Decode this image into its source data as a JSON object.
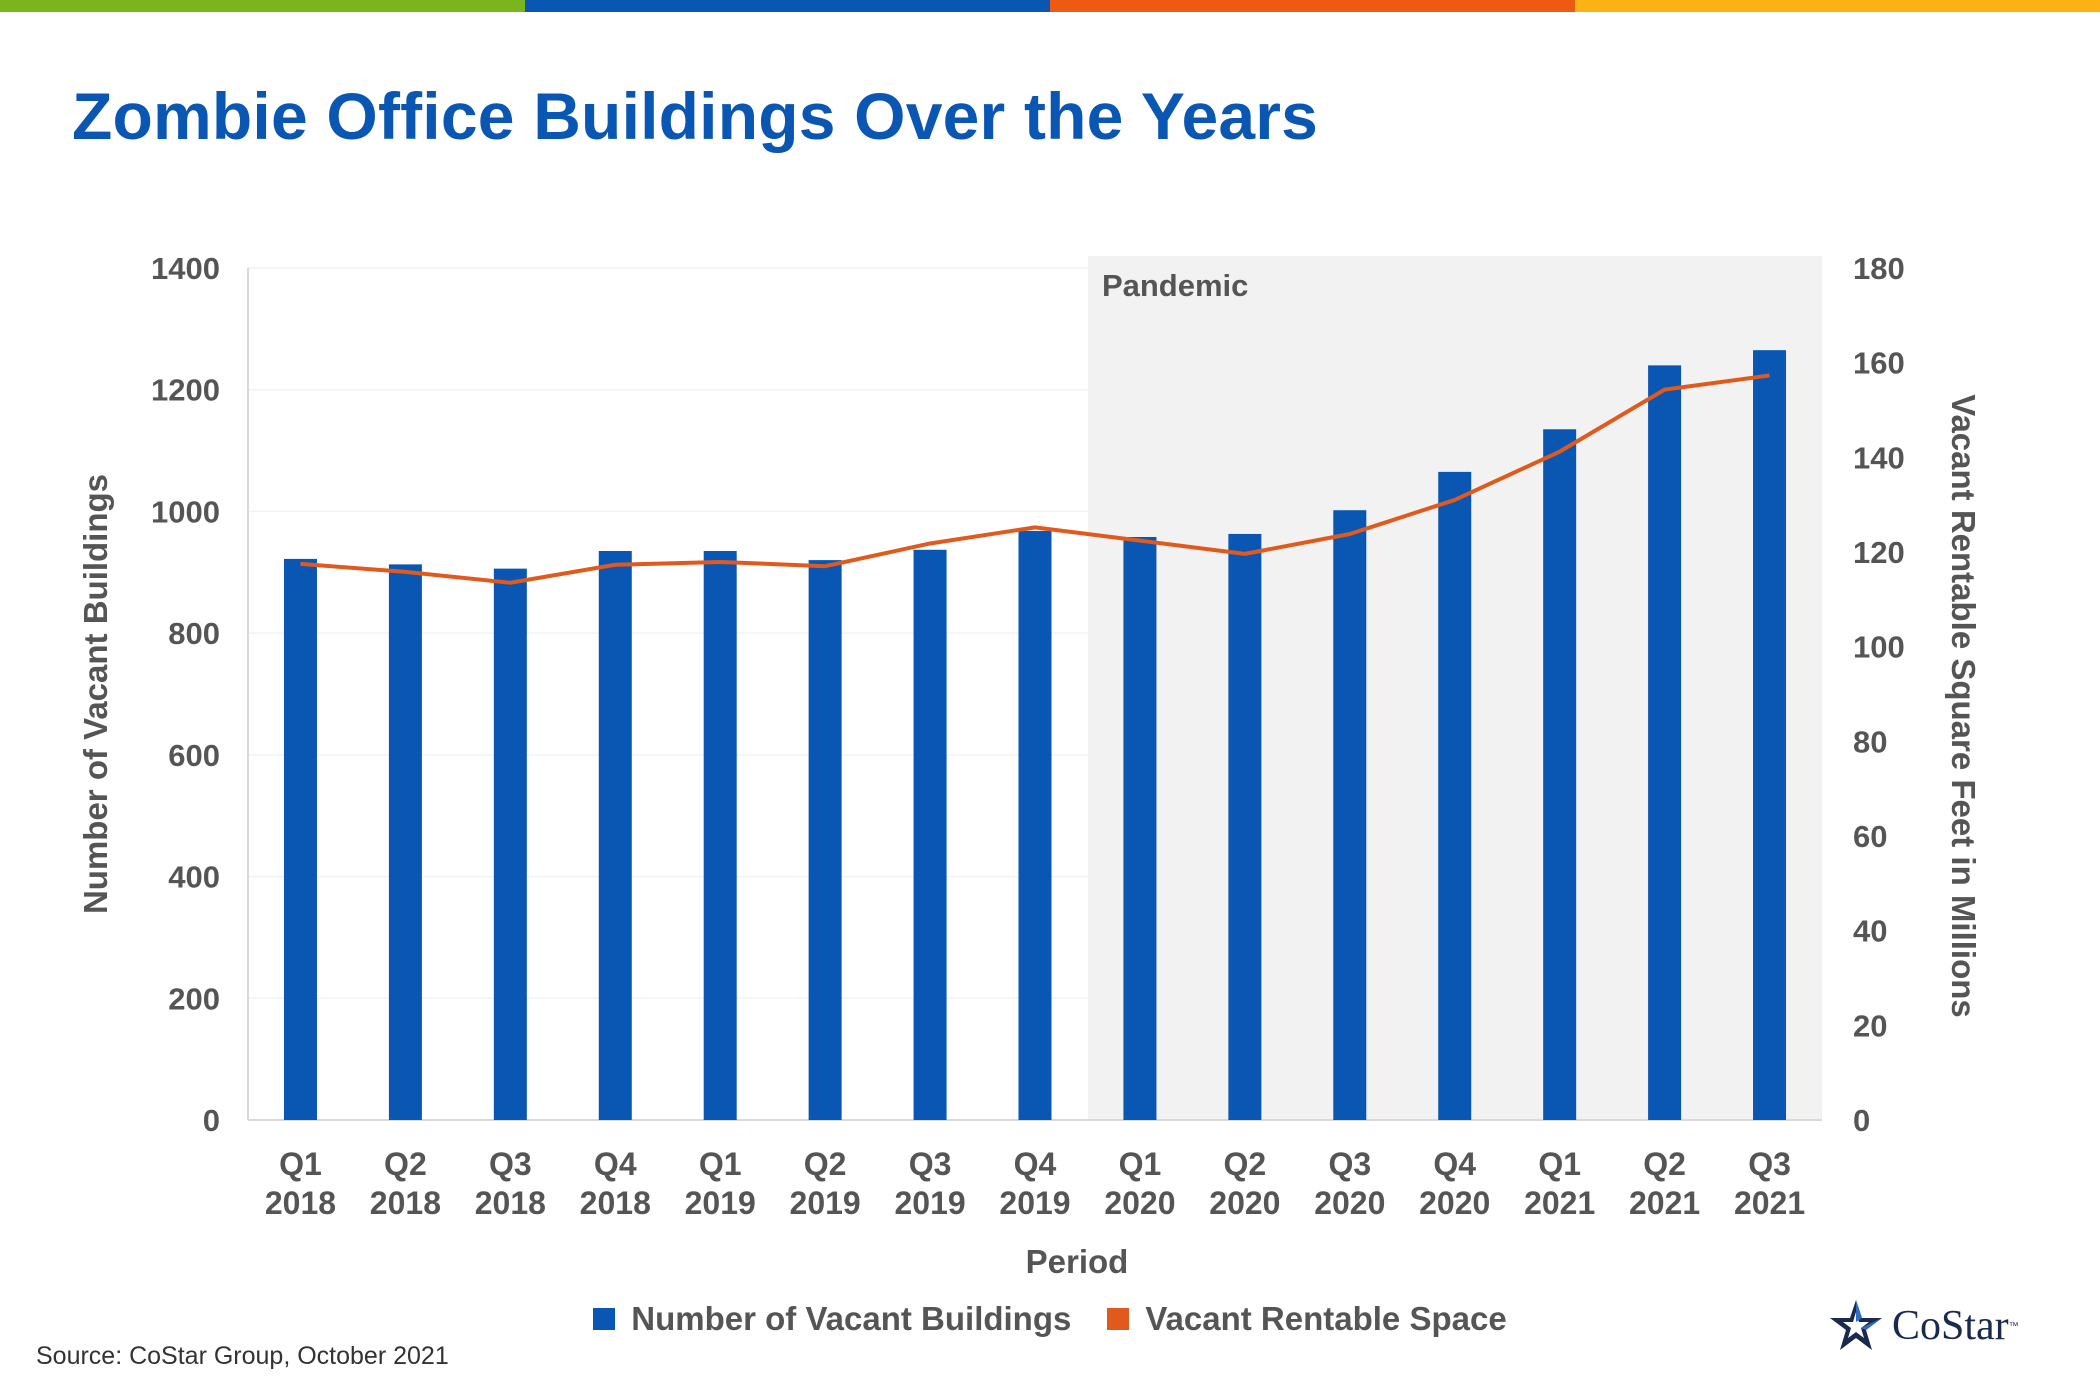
{
  "title": "Zombie Office Buildings Over the Years",
  "colors": {
    "bar": "#0a56b3",
    "line": "#e05a1e",
    "pandemic_shade": "#f2f2f2",
    "axis_text": "#555555",
    "top_bar": [
      "#7ab51d",
      "#0a56b3",
      "#ef5a12",
      "#fbb216"
    ]
  },
  "chart_data": {
    "type": "bar",
    "title": "Zombie Office Buildings Over the Years",
    "xlabel": "Period",
    "ylabel": "Number of Vacant Buildings",
    "y2label": "Vacant Rentable Square Feet in Millions",
    "ylim": [
      0,
      1400
    ],
    "y2lim": [
      0,
      180
    ],
    "yticks": [
      0,
      200,
      400,
      600,
      800,
      1000,
      1200,
      1400
    ],
    "y2ticks": [
      0,
      20,
      40,
      60,
      80,
      100,
      120,
      140,
      160,
      180
    ],
    "categories": [
      [
        "Q1",
        "2018"
      ],
      [
        "Q2",
        "2018"
      ],
      [
        "Q3",
        "2018"
      ],
      [
        "Q4",
        "2018"
      ],
      [
        "Q1",
        "2019"
      ],
      [
        "Q2",
        "2019"
      ],
      [
        "Q3",
        "2019"
      ],
      [
        "Q4",
        "2019"
      ],
      [
        "Q1",
        "2020"
      ],
      [
        "Q2",
        "2020"
      ],
      [
        "Q3",
        "2020"
      ],
      [
        "Q4",
        "2020"
      ],
      [
        "Q1",
        "2021"
      ],
      [
        "Q2",
        "2021"
      ],
      [
        "Q3",
        "2021"
      ]
    ],
    "series": [
      {
        "name": "Number of Vacant Buildings",
        "type": "bar",
        "axis": "left",
        "values": [
          922,
          913,
          906,
          935,
          935,
          920,
          937,
          968,
          958,
          963,
          1002,
          1065,
          1135,
          1240,
          1265
        ]
      },
      {
        "name": "Vacant Rentable Space",
        "type": "line",
        "axis": "right",
        "values": [
          117.5,
          115.8,
          113.5,
          117.3,
          117.9,
          117.0,
          121.8,
          125.2,
          122.4,
          119.6,
          123.8,
          131.0,
          141.2,
          154.3,
          157.3
        ]
      }
    ],
    "annotations": [
      {
        "text": "Pandemic",
        "shaded_from_category": 8,
        "shaded_to_category": 14
      }
    ],
    "grid": true,
    "legend": "bottom-center"
  },
  "source": "Source: CoStar Group, October 2021",
  "logo": {
    "text": "CoStar",
    "tm": "™"
  }
}
